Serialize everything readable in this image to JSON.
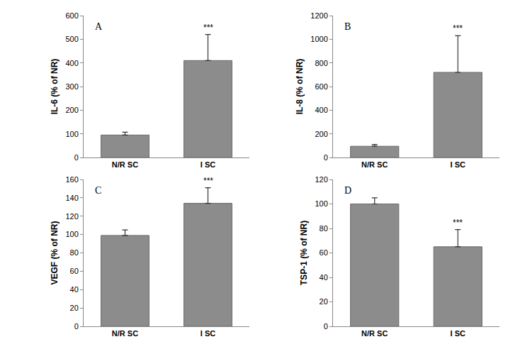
{
  "chart_data": [
    {
      "type": "bar",
      "title": "A",
      "y_label": "IL-6 (% of NR)",
      "categories": [
        "N/R SC",
        "I SC"
      ],
      "values": [
        95,
        410
      ],
      "errors": [
        12,
        110
      ],
      "color": "#8c8c8c",
      "ylim": [
        0,
        600
      ],
      "yticks": [
        0,
        100,
        200,
        300,
        400,
        500,
        600
      ],
      "grid": false,
      "annotations": [
        {
          "text": "***",
          "category": "I SC"
        }
      ]
    },
    {
      "type": "bar",
      "title": "B",
      "y_label": "IL-8 (% of NR)",
      "categories": [
        "N/R SC",
        "I SC"
      ],
      "values": [
        95,
        720
      ],
      "errors": [
        15,
        310
      ],
      "color": "#8c8c8c",
      "ylim": [
        0,
        1200
      ],
      "yticks": [
        0,
        200,
        400,
        600,
        800,
        1000,
        1200
      ],
      "grid": false,
      "annotations": [
        {
          "text": "***",
          "category": "I SC"
        }
      ]
    },
    {
      "type": "bar",
      "title": "C",
      "y_label": "VEGF (% of NR)",
      "categories": [
        "N/R SC",
        "I SC"
      ],
      "values": [
        99,
        134
      ],
      "errors": [
        6,
        17
      ],
      "color": "#8c8c8c",
      "ylim": [
        0,
        160
      ],
      "yticks": [
        0,
        20,
        40,
        60,
        80,
        100,
        120,
        140,
        160
      ],
      "grid": false,
      "annotations": [
        {
          "text": "***",
          "category": "I SC"
        }
      ]
    },
    {
      "type": "bar",
      "title": "D",
      "y_label": "TSP-1 (% of NR)",
      "categories": [
        "N/R SC",
        "I SC"
      ],
      "values": [
        100,
        65
      ],
      "errors": [
        5,
        14
      ],
      "color": "#8c8c8c",
      "ylim": [
        0,
        120
      ],
      "yticks": [
        0,
        20,
        40,
        60,
        80,
        100,
        120
      ],
      "grid": false,
      "annotations": [
        {
          "text": "***",
          "category": "I SC"
        }
      ]
    }
  ]
}
